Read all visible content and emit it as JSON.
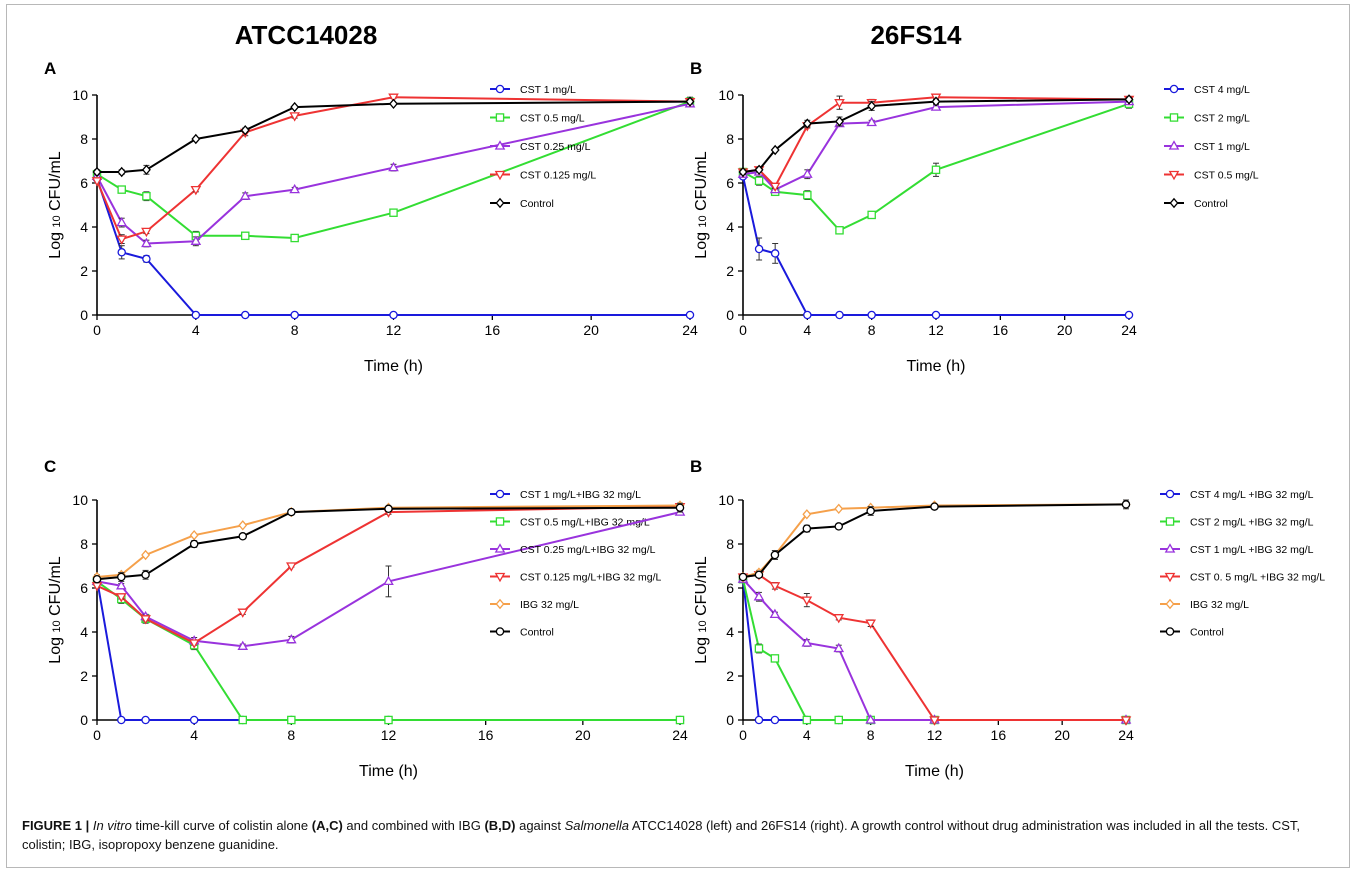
{
  "column_titles": [
    "ATCC14028",
    "26FS14"
  ],
  "caption": {
    "label": "FIGURE 1 |",
    "t1": "In vitro",
    "t2": " time-kill curve of colistin alone ",
    "t3": "(A,C)",
    "t4": " and combined with IBG ",
    "t5": "(B,D)",
    "t6": " against ",
    "t7": "Salmonella",
    "t8": " ATCC14028 (left) and 26FS14 (right). A growth control without drug administration was included in all the tests. CST, colistin; IBG, isopropoxy benzene guanidine."
  },
  "colors": {
    "blue": "#1a1adc",
    "green": "#33dd33",
    "purple": "#9933dd",
    "red": "#ee3333",
    "orange": "#f5a04a",
    "black": "#000000"
  },
  "chart_data": [
    {
      "type": "line",
      "panel_label": "A",
      "xlabel": "Time (h)",
      "ylabel": "Log 10 CFU/mL",
      "xlim": [
        0,
        24
      ],
      "ylim": [
        0,
        10
      ],
      "xticks": [
        0,
        4,
        8,
        12,
        16,
        20,
        24
      ],
      "yticks": [
        0,
        2,
        4,
        6,
        8,
        10
      ],
      "legend_position": "right",
      "x": [
        0,
        1,
        2,
        4,
        6,
        8,
        12,
        24
      ],
      "series": [
        {
          "name": "CST 1 mg/L",
          "color": "blue",
          "marker": "circle",
          "values": [
            6.2,
            2.85,
            2.55,
            0,
            0,
            0,
            0,
            0
          ],
          "errors": [
            0.1,
            0.3,
            0.15,
            0,
            0,
            0,
            0,
            0
          ]
        },
        {
          "name": "CST 0.5 mg/L",
          "color": "green",
          "marker": "square",
          "values": [
            6.4,
            5.7,
            5.4,
            3.6,
            3.6,
            3.5,
            4.65,
            9.7
          ],
          "errors": [
            0.1,
            0.1,
            0.2,
            0.2,
            0.1,
            0.1,
            0.1,
            0.2
          ]
        },
        {
          "name": "CST 0.25 mg/L",
          "color": "purple",
          "marker": "triangle-up",
          "values": [
            6.3,
            4.2,
            3.25,
            3.35,
            5.4,
            5.7,
            6.7,
            9.6
          ],
          "errors": [
            0.1,
            0.2,
            0.15,
            0.2,
            0.15,
            0.1,
            0.15,
            0.1
          ]
        },
        {
          "name": "CST 0.125 mg/L",
          "color": "red",
          "marker": "triangle-down",
          "values": [
            6.1,
            3.45,
            3.8,
            5.7,
            8.3,
            9.05,
            9.9,
            9.7
          ],
          "errors": [
            0.1,
            0.2,
            0.1,
            0.1,
            0.15,
            0.1,
            0.05,
            0.1
          ]
        },
        {
          "name": "Control",
          "color": "black",
          "marker": "diamond",
          "values": [
            6.5,
            6.5,
            6.6,
            8.0,
            8.4,
            9.45,
            9.6,
            9.7
          ],
          "errors": [
            0.1,
            0.1,
            0.2,
            0.05,
            0.1,
            0.05,
            0.05,
            0.1
          ]
        }
      ]
    },
    {
      "type": "line",
      "panel_label": "B",
      "xlabel": "Time (h)",
      "ylabel": "Log 10 CFU/mL",
      "xlim": [
        0,
        24
      ],
      "ylim": [
        0,
        10
      ],
      "xticks": [
        0,
        4,
        8,
        12,
        16,
        20,
        24
      ],
      "yticks": [
        0,
        2,
        4,
        6,
        8,
        10
      ],
      "legend_position": "right",
      "x": [
        0,
        1,
        2,
        4,
        6,
        8,
        12,
        24
      ],
      "series": [
        {
          "name": "CST 4 mg/L",
          "color": "blue",
          "marker": "circle",
          "values": [
            6.3,
            3.0,
            2.8,
            0,
            0,
            0,
            0,
            0
          ],
          "errors": [
            0.1,
            0.5,
            0.45,
            0,
            0,
            0,
            0,
            0
          ]
        },
        {
          "name": "CST 2 mg/L",
          "color": "green",
          "marker": "square",
          "values": [
            6.5,
            6.1,
            5.6,
            5.45,
            3.85,
            4.55,
            6.6,
            9.6
          ],
          "errors": [
            0.1,
            0.2,
            0.1,
            0.2,
            0.15,
            0.1,
            0.3,
            0.2
          ]
        },
        {
          "name": "CST 1 mg/L",
          "color": "purple",
          "marker": "triangle-up",
          "values": [
            6.4,
            6.5,
            5.7,
            6.4,
            8.7,
            8.75,
            9.45,
            9.7
          ],
          "errors": [
            0.1,
            0.1,
            0.1,
            0.2,
            0.1,
            0.1,
            0.1,
            0.1
          ]
        },
        {
          "name": "CST 0.5 mg/L",
          "color": "red",
          "marker": "triangle-down",
          "values": [
            6.5,
            6.6,
            5.85,
            8.6,
            9.65,
            9.65,
            9.9,
            9.8
          ],
          "errors": [
            0.1,
            0.1,
            0.1,
            0.1,
            0.3,
            0.15,
            0.05,
            0.1
          ]
        },
        {
          "name": "Control",
          "color": "black",
          "marker": "diamond",
          "values": [
            6.5,
            6.6,
            7.5,
            8.7,
            8.8,
            9.5,
            9.7,
            9.8
          ],
          "errors": [
            0.1,
            0.1,
            0.05,
            0.15,
            0.2,
            0.2,
            0.1,
            0.1
          ]
        }
      ]
    },
    {
      "type": "line",
      "panel_label": "C",
      "xlabel": "Time (h)",
      "ylabel": "Log 10 CFU/mL",
      "xlim": [
        0,
        24
      ],
      "ylim": [
        0,
        10
      ],
      "xticks": [
        0,
        4,
        8,
        12,
        16,
        20,
        24
      ],
      "yticks": [
        0,
        2,
        4,
        6,
        8,
        10
      ],
      "legend_position": "right",
      "x": [
        0,
        1,
        2,
        4,
        6,
        8,
        12,
        24
      ],
      "series": [
        {
          "name": "CST 1 mg/L+IBG 32 mg/L",
          "color": "blue",
          "marker": "circle",
          "values": [
            6.4,
            0,
            0,
            0,
            0,
            0,
            0,
            0
          ],
          "errors": [
            0.1,
            0,
            0,
            0,
            0,
            0,
            0,
            0
          ]
        },
        {
          "name": "CST 0.5 mg/L+IBG 32 mg/L",
          "color": "green",
          "marker": "square",
          "values": [
            6.3,
            5.5,
            4.6,
            3.4,
            0,
            0,
            0,
            0
          ],
          "errors": [
            0.1,
            0.2,
            0.2,
            0.2,
            0,
            0,
            0,
            0
          ]
        },
        {
          "name": "CST 0.25 mg/L+IBG 32 mg/L",
          "color": "purple",
          "marker": "triangle-up",
          "values": [
            6.3,
            6.1,
            4.7,
            3.6,
            3.35,
            3.65,
            6.3,
            9.45
          ],
          "errors": [
            0.1,
            0.1,
            0.1,
            0.15,
            0.1,
            0.15,
            0.7,
            0.1
          ]
        },
        {
          "name": "CST 0.125 mg/L+IBG 32 mg/L",
          "color": "red",
          "marker": "triangle-down",
          "values": [
            6.1,
            5.6,
            4.6,
            3.5,
            4.9,
            7.0,
            9.45,
            9.7
          ],
          "errors": [
            0.1,
            0.1,
            0.1,
            0.1,
            0.1,
            0.05,
            0.1,
            0.1
          ]
        },
        {
          "name": "IBG 32 mg/L",
          "color": "orange",
          "marker": "diamond",
          "values": [
            6.5,
            6.6,
            7.5,
            8.4,
            8.85,
            9.45,
            9.65,
            9.75
          ],
          "errors": [
            0.1,
            0.1,
            0.05,
            0.05,
            0.05,
            0.05,
            0.05,
            0.1
          ]
        },
        {
          "name": "Control",
          "color": "black",
          "marker": "circle",
          "values": [
            6.4,
            6.5,
            6.6,
            8.0,
            8.35,
            9.45,
            9.6,
            9.65
          ],
          "errors": [
            0.1,
            0.2,
            0.2,
            0.15,
            0.1,
            0.05,
            0.05,
            0.2
          ]
        }
      ]
    },
    {
      "type": "line",
      "panel_label": "B",
      "xlabel": "Time (h)",
      "ylabel": "Log 10 CFU/mL",
      "xlim": [
        0,
        24
      ],
      "ylim": [
        0,
        10
      ],
      "xticks": [
        0,
        4,
        8,
        12,
        16,
        20,
        24
      ],
      "yticks": [
        0,
        2,
        4,
        6,
        8,
        10
      ],
      "legend_position": "right",
      "x": [
        0,
        1,
        2,
        4,
        6,
        8,
        12,
        24
      ],
      "series": [
        {
          "name": "CST 4  mg/L +IBG 32  mg/L",
          "color": "blue",
          "marker": "circle",
          "values": [
            6.4,
            0,
            0,
            0,
            0,
            0,
            0,
            0
          ],
          "errors": [
            0.1,
            0,
            0,
            0,
            0,
            0,
            0,
            0
          ]
        },
        {
          "name": "CST 2  mg/L +IBG 32  mg/L",
          "color": "green",
          "marker": "square",
          "values": [
            6.4,
            3.25,
            2.8,
            0,
            0,
            0,
            0,
            0
          ],
          "errors": [
            0.1,
            0.2,
            0.15,
            0,
            0,
            0,
            0,
            0
          ]
        },
        {
          "name": "CST 1  mg/L +IBG 32  mg/L",
          "color": "purple",
          "marker": "triangle-up",
          "values": [
            6.4,
            5.6,
            4.8,
            3.5,
            3.25,
            0,
            0,
            0
          ],
          "errors": [
            0.1,
            0.2,
            0.1,
            0.15,
            0.15,
            0,
            0,
            0
          ]
        },
        {
          "name": "CST 0. 5  mg/L +IBG 32  mg/L",
          "color": "red",
          "marker": "triangle-down",
          "values": [
            6.5,
            6.6,
            6.1,
            5.45,
            4.65,
            4.4,
            0,
            0
          ],
          "errors": [
            0.1,
            0.1,
            0.15,
            0.3,
            0.1,
            0.15,
            0,
            0
          ]
        },
        {
          "name": "IBG 32 mg/L",
          "color": "orange",
          "marker": "diamond",
          "values": [
            6.5,
            6.7,
            7.5,
            9.35,
            9.6,
            9.65,
            9.75,
            9.8
          ],
          "errors": [
            0.1,
            0.1,
            0.2,
            0.05,
            0.05,
            0.05,
            0.05,
            0.1
          ]
        },
        {
          "name": "Control",
          "color": "black",
          "marker": "circle",
          "values": [
            6.5,
            6.6,
            7.5,
            8.7,
            8.8,
            9.5,
            9.7,
            9.8
          ],
          "errors": [
            0.1,
            0.1,
            0.2,
            0.15,
            0.1,
            0.2,
            0.1,
            0.2
          ]
        }
      ]
    }
  ]
}
